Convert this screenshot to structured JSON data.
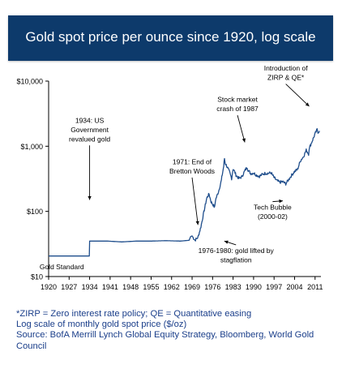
{
  "header": {
    "title": "Gold spot price per ounce since 1920, log scale",
    "background_color": "#0d3a6b"
  },
  "footnotes": {
    "zirp": "*ZIRP = Zero interest rate policy; QE = Quantitative easing",
    "scale": "Log scale of monthly gold spot price ($/oz)",
    "source": "Source: BofA Merrill Lynch Global Equity Strategy, Bloomberg, World Gold Council"
  },
  "chart_data": {
    "type": "line",
    "title": "Gold spot price per ounce since 1920, log scale",
    "xlabel": "",
    "ylabel": "",
    "y_scale": "log",
    "ylim": [
      10,
      10000
    ],
    "xlim": [
      1920,
      2013
    ],
    "grid": false,
    "line_color": "#1f4e8c",
    "y_tick_labels": [
      "$10",
      "$100",
      "$1,000",
      "$10,000"
    ],
    "y_tick_values": [
      10,
      100,
      1000,
      10000
    ],
    "x_tick_labels": [
      "1920",
      "1927",
      "1934",
      "1941",
      "1948",
      "1955",
      "1962",
      "1969",
      "1976",
      "1983",
      "1990",
      "1997",
      "2004",
      "2011"
    ],
    "x_tick_values": [
      1920,
      1927,
      1934,
      1941,
      1948,
      1955,
      1962,
      1969,
      1976,
      1983,
      1990,
      1997,
      2004,
      2011
    ],
    "series": [
      {
        "points": [
          [
            1920,
            20.67
          ],
          [
            1933.9,
            20.67
          ],
          [
            1934,
            35
          ],
          [
            1940,
            35
          ],
          [
            1945,
            34
          ],
          [
            1950,
            35
          ],
          [
            1955,
            35
          ],
          [
            1960,
            35.5
          ],
          [
            1965,
            35
          ],
          [
            1968,
            36
          ],
          [
            1968.5,
            41
          ],
          [
            1969,
            42
          ],
          [
            1970,
            36
          ],
          [
            1971,
            40
          ],
          [
            1972,
            58
          ],
          [
            1973,
            97
          ],
          [
            1974,
            160
          ],
          [
            1974.8,
            185
          ],
          [
            1975,
            170
          ],
          [
            1975.5,
            140
          ],
          [
            1976,
            130
          ],
          [
            1976.7,
            115
          ],
          [
            1977,
            150
          ],
          [
            1978,
            200
          ],
          [
            1979,
            300
          ],
          [
            1979.8,
            500
          ],
          [
            1980.05,
            650
          ],
          [
            1980.3,
            550
          ],
          [
            1981,
            480
          ],
          [
            1981.8,
            400
          ],
          [
            1982.5,
            320
          ],
          [
            1983,
            450
          ],
          [
            1983.5,
            410
          ],
          [
            1984,
            360
          ],
          [
            1985,
            320
          ],
          [
            1986,
            340
          ],
          [
            1987,
            420
          ],
          [
            1987.8,
            480
          ],
          [
            1988,
            440
          ],
          [
            1989,
            380
          ],
          [
            1990,
            390
          ],
          [
            1991,
            360
          ],
          [
            1992,
            345
          ],
          [
            1993,
            370
          ],
          [
            1994,
            385
          ],
          [
            1995,
            385
          ],
          [
            1996,
            390
          ],
          [
            1997,
            330
          ],
          [
            1998,
            295
          ],
          [
            1999,
            280
          ],
          [
            2000,
            285
          ],
          [
            2001,
            265
          ],
          [
            2002,
            310
          ],
          [
            2003,
            360
          ],
          [
            2004,
            410
          ],
          [
            2005,
            440
          ],
          [
            2006,
            600
          ],
          [
            2007,
            690
          ],
          [
            2008,
            870
          ],
          [
            2008.8,
            760
          ],
          [
            2009,
            930
          ],
          [
            2010,
            1200
          ],
          [
            2011,
            1550
          ],
          [
            2011.7,
            1800
          ],
          [
            2012,
            1650
          ],
          [
            2012.5,
            1720
          ]
        ]
      }
    ],
    "annotations": [
      {
        "lines": [
          "1934: US",
          "Government",
          "revalued gold"
        ],
        "x": 1934,
        "y": 35,
        "text_x": 1934,
        "text_y": 2300,
        "arrow_y": 150
      },
      {
        "lines": [
          "1971: End of",
          "Bretton Woods"
        ],
        "x": 1971,
        "y": 40,
        "text_x": 1969,
        "text_y": 530,
        "arrow_y": 62
      },
      {
        "lines": [
          "Stock market",
          "crash of 1987"
        ],
        "x": 1987,
        "y": 440,
        "text_x": 1984.5,
        "text_y": 4800,
        "arrow_y": 1150
      },
      {
        "lines": [
          "Introduction of",
          "ZIRP & QE*"
        ],
        "x": 2009,
        "y": 1000,
        "text_x": 2001,
        "text_y": 14500,
        "arrow_y": 4100
      },
      {
        "lines": [
          "Tech Bubble",
          "(2000-02)"
        ],
        "x": 2000,
        "y": 270,
        "text_x": 1996.5,
        "text_y": 106,
        "arrow_y": 145
      },
      {
        "lines": [
          "1976-1980: gold lifted by",
          "stagflation"
        ],
        "x": 1980,
        "y": 80,
        "text_x": 1984,
        "text_y": 23,
        "arrow_y": 35
      },
      {
        "lines": [
          "Gold Standard"
        ],
        "x": 1920,
        "y": 20,
        "text_x": 1924.5,
        "text_y": 13,
        "arrow_y": null
      }
    ]
  }
}
